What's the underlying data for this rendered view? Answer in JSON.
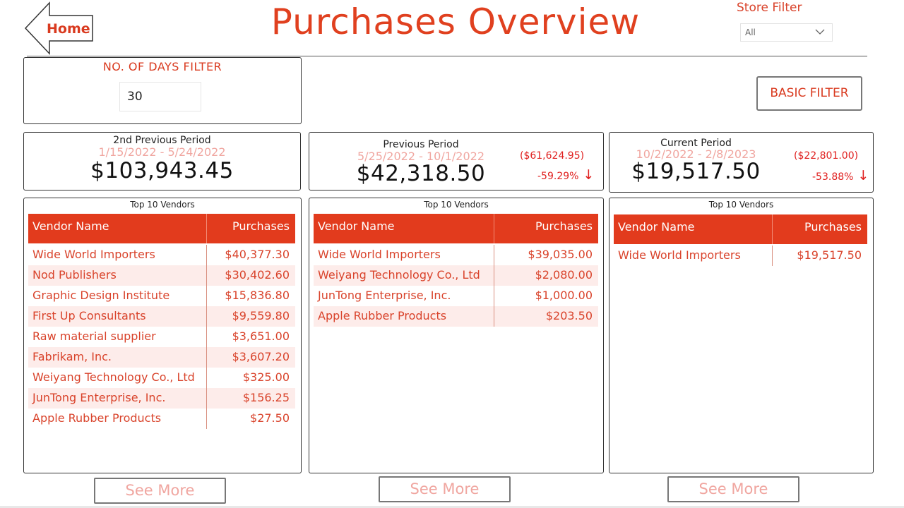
{
  "header": {
    "home_label": "Home",
    "title": "Purchases Overview",
    "store_filter": {
      "label": "Store Filter",
      "selected": "All"
    }
  },
  "days_filter": {
    "title": "NO. OF DAYS FILTER",
    "value": "30"
  },
  "basic_filter_label": "BASIC FILTER",
  "periods": [
    {
      "name": "2nd Previous Period",
      "range": "1/15/2022 - 5/24/2022",
      "amount": "$103,943.45",
      "diff": "",
      "pct": ""
    },
    {
      "name": "Previous Period",
      "range": "5/25/2022 - 10/1/2022",
      "amount": "$42,318.50",
      "diff": "($61,624.95)",
      "pct": "-59.29%"
    },
    {
      "name": "Current Period",
      "range": "10/2/2022 - 2/8/2023",
      "amount": "$19,517.50",
      "diff": "($22,801.00)",
      "pct": "-53.88%"
    }
  ],
  "vendor_tables": [
    {
      "title": "Top 10 Vendors",
      "col_name": "Vendor Name",
      "col_purchases": "Purchases",
      "rows": [
        {
          "name": "Wide World Importers",
          "value": "$40,377.30"
        },
        {
          "name": "Nod Publishers",
          "value": "$30,402.60"
        },
        {
          "name": "Graphic Design Institute",
          "value": "$15,836.80"
        },
        {
          "name": "First Up Consultants",
          "value": "$9,559.80"
        },
        {
          "name": "Raw material supplier",
          "value": "$3,651.00"
        },
        {
          "name": "Fabrikam, Inc.",
          "value": "$3,607.20"
        },
        {
          "name": "Weiyang Technology Co., Ltd",
          "value": "$325.00"
        },
        {
          "name": "JunTong Enterprise, Inc.",
          "value": "$156.25"
        },
        {
          "name": "Apple  Rubber  Products",
          "value": "$27.50"
        }
      ]
    },
    {
      "title": "Top 10 Vendors",
      "col_name": "Vendor Name",
      "col_purchases": "Purchases",
      "rows": [
        {
          "name": "Wide World Importers",
          "value": "$39,035.00"
        },
        {
          "name": "Weiyang Technology Co., Ltd",
          "value": "$2,080.00"
        },
        {
          "name": "JunTong Enterprise, Inc.",
          "value": "$1,000.00"
        },
        {
          "name": "Apple  Rubber  Products",
          "value": "$203.50"
        }
      ]
    },
    {
      "title": "Top 10 Vendors",
      "col_name": "Vendor Name",
      "col_purchases": "Purchases",
      "rows": [
        {
          "name": "Wide World Importers",
          "value": "$19,517.50"
        }
      ]
    }
  ],
  "see_more_label": "See More",
  "colors": {
    "accent": "#e23b1d",
    "text_red": "#d9432b",
    "faded_red": "#f0a6a0",
    "row_alt": "#fdecea"
  },
  "icons": {
    "home": "left-arrow-shape",
    "dropdown": "chevron-down-icon",
    "trend": "down-arrow-icon"
  }
}
